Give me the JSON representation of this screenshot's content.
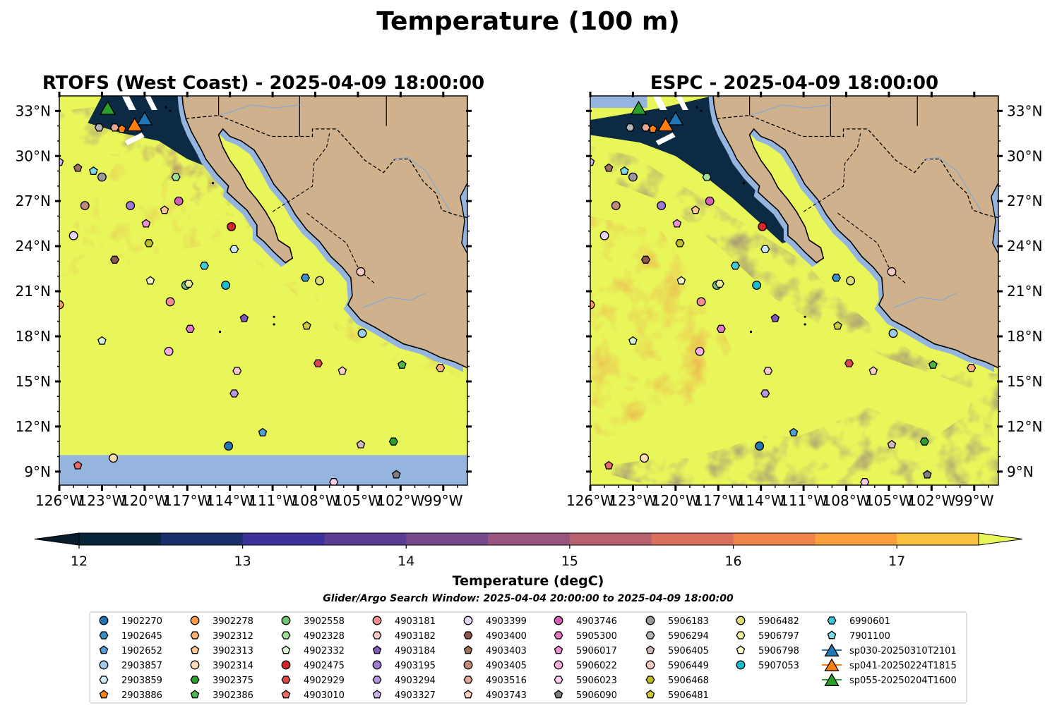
{
  "figure": {
    "title": "Temperature (100 m)",
    "search_window": "Glider/Argo Search Window: 2025-04-04 20:00:00 to 2025-04-09 18:00:00"
  },
  "colors": {
    "land": "#cfb28d",
    "nodata": "#95b5df",
    "deep": "#0a2338",
    "warm": "#e8f65a",
    "border": "#000000"
  },
  "chart_data": {
    "type": "heatmap",
    "xaxis": {
      "ticks": [
        -126,
        -123,
        -120,
        -117,
        -114,
        -111,
        -108,
        -105,
        -102,
        -99
      ],
      "tick_labels": [
        "126°W",
        "123°W",
        "120°W",
        "117°W",
        "114°W",
        "111°W",
        "108°W",
        "105°W",
        "102°W",
        "99°W"
      ],
      "range": [
        -126,
        -97.3
      ]
    },
    "yaxis": {
      "ticks": [
        9,
        12,
        15,
        18,
        21,
        24,
        27,
        30,
        33
      ],
      "tick_labels": [
        "9°N",
        "12°N",
        "15°N",
        "18°N",
        "21°N",
        "24°N",
        "27°N",
        "30°N",
        "33°N"
      ],
      "range": [
        8.1,
        34
      ]
    },
    "panels": [
      {
        "title": "RTOFS (West Coast) - 2025-04-09 18:00:00",
        "model": "RTOFS"
      },
      {
        "title": "ESPC - 2025-04-09 18:00:00",
        "model": "ESPC"
      }
    ],
    "colorbar": {
      "label": "Temperature (degC)",
      "ticks": [
        12,
        13,
        14,
        15,
        16,
        17
      ],
      "levels": [
        12,
        12.5,
        13,
        13.5,
        14,
        14.5,
        15,
        15.5,
        16,
        16.5,
        17,
        17.5
      ],
      "colors": [
        "#082438",
        "#1b2f6a",
        "#3e329a",
        "#5b3e93",
        "#774a8c",
        "#98557f",
        "#b8626f",
        "#d86f5f",
        "#ef834a",
        "#f9a03c",
        "#f8c23f"
      ],
      "under": "#061c2c",
      "over": "#e8f65a",
      "extend": "both"
    },
    "legend": {
      "ncol": 10,
      "entries": [
        {
          "label": "1902270",
          "marker": "circle",
          "color": "#1f77b4"
        },
        {
          "label": "1902645",
          "marker": "hexagon",
          "color": "#3b8fc7"
        },
        {
          "label": "1902652",
          "marker": "pentagon",
          "color": "#4d9fd8"
        },
        {
          "label": "2903857",
          "marker": "circle",
          "color": "#9ecae9"
        },
        {
          "label": "2903859",
          "marker": "hexagon",
          "color": "#cfe8f7"
        },
        {
          "label": "2903886",
          "marker": "pentagon",
          "color": "#ff7f0e"
        },
        {
          "label": "3902278",
          "marker": "circle",
          "color": "#ff9944"
        },
        {
          "label": "3902312",
          "marker": "hexagon",
          "color": "#ffb070"
        },
        {
          "label": "3902313",
          "marker": "pentagon",
          "color": "#ffc894"
        },
        {
          "label": "3902314",
          "marker": "circle",
          "color": "#ffdcb5"
        },
        {
          "label": "3902375",
          "marker": "hexagon",
          "color": "#2ca02c"
        },
        {
          "label": "3902386",
          "marker": "pentagon",
          "color": "#4cb44c"
        },
        {
          "label": "3902558",
          "marker": "circle",
          "color": "#74c476"
        },
        {
          "label": "4902328",
          "marker": "hexagon",
          "color": "#a1dd9b"
        },
        {
          "label": "4902332",
          "marker": "pentagon",
          "color": "#d4f5cf"
        },
        {
          "label": "4902475",
          "marker": "circle",
          "color": "#d62728"
        },
        {
          "label": "4902929",
          "marker": "hexagon",
          "color": "#e04848"
        },
        {
          "label": "4903010",
          "marker": "pentagon",
          "color": "#ea6a6a"
        },
        {
          "label": "4903181",
          "marker": "circle",
          "color": "#f28e8e"
        },
        {
          "label": "4903182",
          "marker": "hexagon",
          "color": "#fbc8c8"
        },
        {
          "label": "4903184",
          "marker": "pentagon",
          "color": "#8058b7"
        },
        {
          "label": "4903195",
          "marker": "circle",
          "color": "#9e7ad0"
        },
        {
          "label": "4903294",
          "marker": "hexagon",
          "color": "#b596e0"
        },
        {
          "label": "4903327",
          "marker": "pentagon",
          "color": "#cdb5f0"
        },
        {
          "label": "4903399",
          "marker": "circle",
          "color": "#e3d5fb"
        },
        {
          "label": "4903400",
          "marker": "hexagon",
          "color": "#8c564b"
        },
        {
          "label": "4903403",
          "marker": "pentagon",
          "color": "#a0705f"
        },
        {
          "label": "4903405",
          "marker": "circle",
          "color": "#c18a7c"
        },
        {
          "label": "4903516",
          "marker": "hexagon",
          "color": "#e2a798"
        },
        {
          "label": "4903743",
          "marker": "pentagon",
          "color": "#fbd2c5"
        },
        {
          "label": "4903746",
          "marker": "circle",
          "color": "#d45fb7"
        },
        {
          "label": "5905300",
          "marker": "hexagon",
          "color": "#e377c2"
        },
        {
          "label": "5906017",
          "marker": "pentagon",
          "color": "#ee90d2"
        },
        {
          "label": "5906022",
          "marker": "circle",
          "color": "#f6acdf"
        },
        {
          "label": "5906023",
          "marker": "hexagon",
          "color": "#fcd0ee"
        },
        {
          "label": "5906090",
          "marker": "pentagon",
          "color": "#7f7f7f"
        },
        {
          "label": "5906183",
          "marker": "circle",
          "color": "#999999"
        },
        {
          "label": "5906294",
          "marker": "hexagon",
          "color": "#b4b4b4"
        },
        {
          "label": "5906405",
          "marker": "pentagon",
          "color": "#d2b4b4"
        },
        {
          "label": "5906449",
          "marker": "circle",
          "color": "#f7c8c0"
        },
        {
          "label": "5906468",
          "marker": "hexagon",
          "color": "#bcbd22"
        },
        {
          "label": "5906481",
          "marker": "pentagon",
          "color": "#cbcc35"
        },
        {
          "label": "5906482",
          "marker": "circle",
          "color": "#dcdc7a"
        },
        {
          "label": "5906797",
          "marker": "hexagon",
          "color": "#eeee9f"
        },
        {
          "label": "5906798",
          "marker": "pentagon",
          "color": "#fdfcc8"
        },
        {
          "label": "5907053",
          "marker": "circle",
          "color": "#17becf"
        },
        {
          "label": "6990601",
          "marker": "hexagon",
          "color": "#3fc9d8"
        },
        {
          "label": "7901100",
          "marker": "pentagon",
          "color": "#7cdbe6"
        },
        {
          "label": "sp030-20250310T2101",
          "marker": "triangle",
          "color": "#1f77b4"
        },
        {
          "label": "sp041-20250224T1815",
          "marker": "triangle",
          "color": "#ff7f0e"
        },
        {
          "label": "sp055-20250204T1600",
          "marker": "triangle",
          "color": "#2ca02c"
        }
      ]
    },
    "floats": [
      {
        "id": "1902270",
        "lon": -114.1,
        "lat": 10.7
      },
      {
        "id": "1902645",
        "lon": -108.7,
        "lat": 21.9
      },
      {
        "id": "1902652",
        "lon": -111.7,
        "lat": 11.6
      },
      {
        "id": "2903857",
        "lon": -104.7,
        "lat": 18.2
      },
      {
        "id": "2903859",
        "lon": -113.7,
        "lat": 23.8
      },
      {
        "id": "2903886",
        "lon": -121.6,
        "lat": 31.8
      },
      {
        "id": "3902278",
        "lon": -126.0,
        "lat": 20.1
      },
      {
        "id": "3902312",
        "lon": -99.2,
        "lat": 15.9
      },
      {
        "id": "3902313",
        "lon": -118.6,
        "lat": 26.4
      },
      {
        "id": "3902314",
        "lon": -122.2,
        "lat": 9.9
      },
      {
        "id": "3902375",
        "lon": -102.5,
        "lat": 11.0
      },
      {
        "id": "3902386",
        "lon": -101.9,
        "lat": 16.1
      },
      {
        "id": "3902558",
        "lon": -117.1,
        "lat": 21.4
      },
      {
        "id": "4902328",
        "lon": -117.8,
        "lat": 28.6
      },
      {
        "id": "4902332",
        "lon": -123.0,
        "lat": 17.7
      },
      {
        "id": "4902475",
        "lon": -113.9,
        "lat": 25.3
      },
      {
        "id": "4902929",
        "lon": -107.8,
        "lat": 16.2
      },
      {
        "id": "4903010",
        "lon": -124.7,
        "lat": 9.4
      },
      {
        "id": "4903181",
        "lon": -118.2,
        "lat": 20.3
      },
      {
        "id": "4903182",
        "lon": -113.5,
        "lat": 15.7
      },
      {
        "id": "4903184",
        "lon": -113.0,
        "lat": 19.2
      },
      {
        "id": "4903195",
        "lon": -121.0,
        "lat": 26.7
      },
      {
        "id": "4903294",
        "lon": -113.7,
        "lat": 14.2
      },
      {
        "id": "4903327",
        "lon": -126.0,
        "lat": 29.6
      },
      {
        "id": "4903399",
        "lon": -125.0,
        "lat": 24.7
      },
      {
        "id": "4903400",
        "lon": -122.1,
        "lat": 23.1
      },
      {
        "id": "4903403",
        "lon": -124.7,
        "lat": 29.2
      },
      {
        "id": "4903405",
        "lon": -124.2,
        "lat": 26.7
      },
      {
        "id": "4903516",
        "lon": -122.1,
        "lat": 31.9
      },
      {
        "id": "4903743",
        "lon": -106.1,
        "lat": 15.7
      },
      {
        "id": "4903746",
        "lon": -117.6,
        "lat": 27.0
      },
      {
        "id": "5905300",
        "lon": -116.8,
        "lat": 18.5
      },
      {
        "id": "5906017",
        "lon": -119.9,
        "lat": 25.5
      },
      {
        "id": "5906022",
        "lon": -118.3,
        "lat": 17.0
      },
      {
        "id": "5906023",
        "lon": -106.7,
        "lat": 8.3
      },
      {
        "id": "5906090",
        "lon": -102.3,
        "lat": 8.8
      },
      {
        "id": "5906183",
        "lon": -123.0,
        "lat": 28.6
      },
      {
        "id": "5906294",
        "lon": -123.2,
        "lat": 31.9
      },
      {
        "id": "5906405",
        "lon": -104.8,
        "lat": 10.8
      },
      {
        "id": "5906449",
        "lon": -104.8,
        "lat": 22.3
      },
      {
        "id": "5906468",
        "lon": -119.7,
        "lat": 24.2
      },
      {
        "id": "5906481",
        "lon": -108.6,
        "lat": 18.7
      },
      {
        "id": "5906482",
        "lon": -107.7,
        "lat": 21.7
      },
      {
        "id": "5906797",
        "lon": -116.9,
        "lat": 21.5
      },
      {
        "id": "5906798",
        "lon": -119.6,
        "lat": 21.7
      },
      {
        "id": "5907053",
        "lon": -114.3,
        "lat": 21.4
      },
      {
        "id": "6990601",
        "lon": -115.8,
        "lat": 22.7
      },
      {
        "id": "7901100",
        "lon": -123.6,
        "lat": 29.0
      }
    ],
    "gliders": [
      {
        "id": "sp030-20250310T2101",
        "lon": -120.0,
        "lat": 32.5
      },
      {
        "id": "sp041-20250224T1815",
        "lon": -120.7,
        "lat": 32.1
      },
      {
        "id": "sp055-20250204T1600",
        "lon": -122.6,
        "lat": 33.2
      }
    ]
  }
}
